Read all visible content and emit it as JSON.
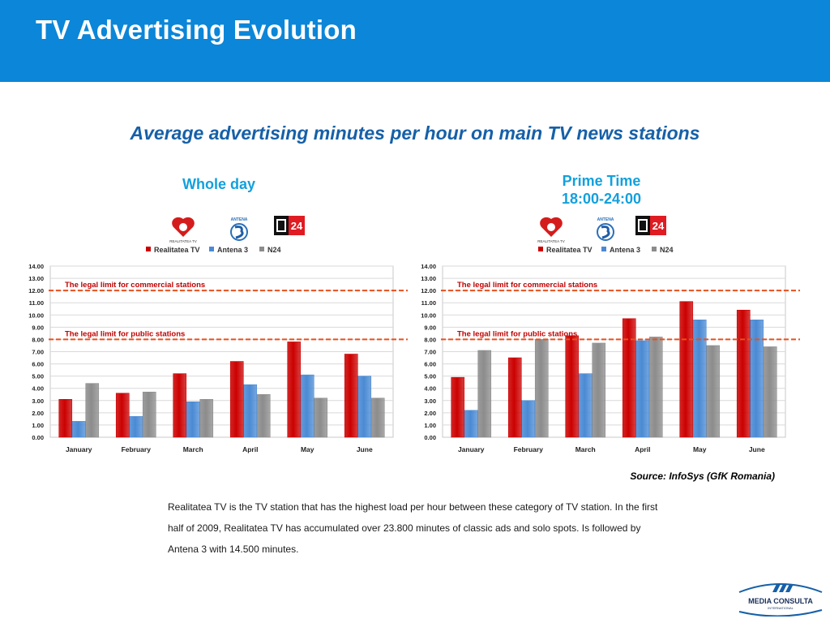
{
  "header": {
    "title": "TV Advertising Evolution",
    "bg_color": "#0b86d8"
  },
  "subtitle": "Average advertising minutes per hour on main TV news stations",
  "panels": [
    {
      "title_lines": [
        "Whole day"
      ]
    },
    {
      "title_lines": [
        "Prime Time",
        "18:00-24:00"
      ]
    }
  ],
  "logos": {
    "realitatea_text": "REALITATEA TV",
    "antena_text": "ANTENA",
    "n24_number": "24"
  },
  "legend_labels": [
    "Realitatea TV",
    "Antena 3",
    "N24"
  ],
  "colors": {
    "realitatea": "#cc0000",
    "antena3": "#4a8ad4",
    "n24": "#8c8c8c",
    "limit_line": "#e8501c"
  },
  "source": "Source: InfoSys (GfK Romania)",
  "body_text": "Realitatea TV is the TV station that has the highest load per hour between these category of TV station. In the first half of 2009, Realitatea TV has accumulated over 23.800 minutes of classic ads and solo spots. Is followed by Antena 3 with 14.500 minutes.",
  "footer": {
    "brand": "MEDIA CONSULTA",
    "sub": "INTERNATIONAL"
  },
  "chart_data": [
    {
      "type": "bar",
      "title": "Whole day",
      "categories": [
        "January",
        "February",
        "March",
        "April",
        "May",
        "June"
      ],
      "series": [
        {
          "name": "Realitatea TV",
          "values": [
            3.1,
            3.6,
            5.2,
            6.2,
            7.8,
            6.8
          ]
        },
        {
          "name": "Antena 3",
          "values": [
            1.3,
            1.7,
            2.9,
            4.3,
            5.1,
            5.0
          ]
        },
        {
          "name": "N24",
          "values": [
            4.4,
            3.7,
            3.1,
            3.5,
            3.2,
            3.2
          ]
        }
      ],
      "ylim": [
        0,
        14
      ],
      "yticks": [
        "0.00",
        "1.00",
        "2.00",
        "3.00",
        "4.00",
        "5.00",
        "6.00",
        "7.00",
        "8.00",
        "9.00",
        "10.00",
        "11.00",
        "12.00",
        "13.00",
        "14.00"
      ],
      "reference_lines": [
        {
          "value": 12,
          "label": "The legal limit for commercial stations"
        },
        {
          "value": 8,
          "label": "The legal limit for public stations"
        }
      ],
      "legend_position": "top",
      "grid": true
    },
    {
      "type": "bar",
      "title": "Prime Time 18:00-24:00",
      "categories": [
        "January",
        "February",
        "March",
        "April",
        "May",
        "June"
      ],
      "series": [
        {
          "name": "Realitatea TV",
          "values": [
            4.9,
            6.5,
            8.3,
            9.7,
            11.1,
            10.4
          ]
        },
        {
          "name": "Antena 3",
          "values": [
            2.2,
            3.0,
            5.2,
            7.9,
            9.6,
            9.6
          ]
        },
        {
          "name": "N24",
          "values": [
            7.1,
            8.0,
            7.7,
            8.2,
            7.5,
            7.4
          ]
        }
      ],
      "ylim": [
        0,
        14
      ],
      "yticks": [
        "0.00",
        "1.00",
        "2.00",
        "3.00",
        "4.00",
        "5.00",
        "6.00",
        "7.00",
        "8.00",
        "9.00",
        "10.00",
        "11.00",
        "12.00",
        "13.00",
        "14.00"
      ],
      "reference_lines": [
        {
          "value": 12,
          "label": "The legal limit for commercial stations"
        },
        {
          "value": 8,
          "label": "The legal limit for public stations"
        }
      ],
      "legend_position": "top",
      "grid": true
    }
  ]
}
